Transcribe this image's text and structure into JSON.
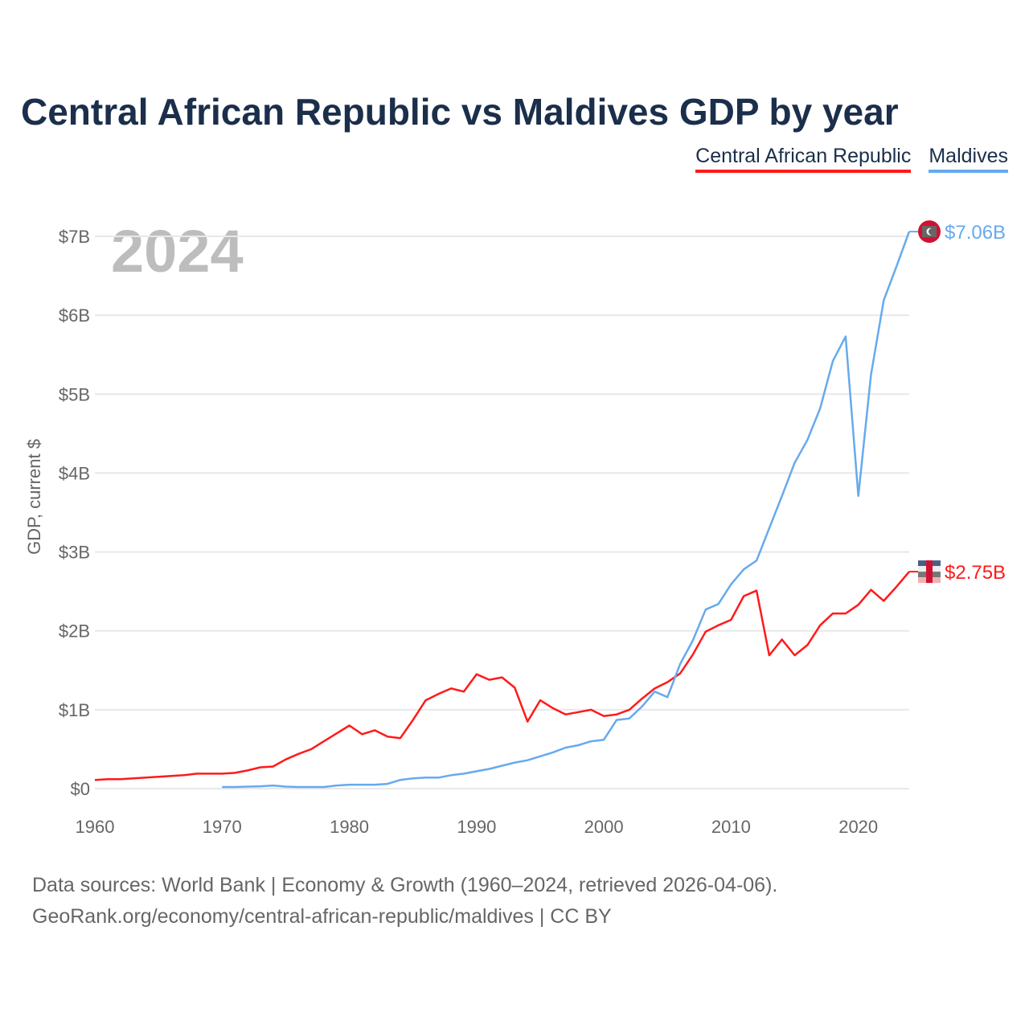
{
  "chart_data": {
    "type": "line",
    "title": "Central African Republic vs Maldives GDP by year",
    "ylabel": "GDP, current $",
    "xlabel": "",
    "ylim": [
      0,
      7
    ],
    "xlim": [
      1960,
      2024
    ],
    "y_unit": "billions USD",
    "yticks": [
      0,
      1,
      2,
      3,
      4,
      5,
      6,
      7
    ],
    "ytick_labels": [
      "$0",
      "$1B",
      "$2B",
      "$3B",
      "$4B",
      "$5B",
      "$6B",
      "$7B"
    ],
    "xticks": [
      1960,
      1970,
      1980,
      1990,
      2000,
      2010,
      2020
    ],
    "xtick_labels": [
      "1960",
      "1970",
      "1980",
      "1990",
      "2000",
      "2010",
      "2020"
    ],
    "grid": true,
    "legend_placement": "top-right",
    "year_watermark": "2024",
    "series": [
      {
        "name": "Central African Republic",
        "color": "#ff1a1a",
        "end_label": "$2.75B",
        "start_year": 1960,
        "values": [
          0.11,
          0.12,
          0.12,
          0.13,
          0.14,
          0.15,
          0.16,
          0.17,
          0.19,
          0.19,
          0.19,
          0.2,
          0.23,
          0.27,
          0.28,
          0.37,
          0.44,
          0.5,
          0.6,
          0.7,
          0.8,
          0.69,
          0.74,
          0.66,
          0.64,
          0.87,
          1.12,
          1.2,
          1.27,
          1.23,
          1.45,
          1.38,
          1.41,
          1.28,
          0.85,
          1.12,
          1.02,
          0.94,
          0.97,
          1.0,
          0.92,
          0.94,
          1.0,
          1.14,
          1.27,
          1.35,
          1.46,
          1.7,
          1.99,
          2.07,
          2.14,
          2.44,
          2.51,
          1.69,
          1.89,
          1.69,
          1.82,
          2.07,
          2.22,
          2.22,
          2.33,
          2.52,
          2.38,
          2.56,
          2.75
        ]
      },
      {
        "name": "Maldives",
        "color": "#66aaee",
        "end_label": "$7.06B",
        "start_year": 1970,
        "values": [
          0.02,
          0.02,
          0.025,
          0.03,
          0.04,
          0.025,
          0.02,
          0.02,
          0.02,
          0.04,
          0.05,
          0.05,
          0.05,
          0.06,
          0.11,
          0.13,
          0.14,
          0.14,
          0.17,
          0.19,
          0.22,
          0.25,
          0.29,
          0.33,
          0.36,
          0.41,
          0.46,
          0.52,
          0.55,
          0.6,
          0.62,
          0.87,
          0.89,
          1.04,
          1.23,
          1.16,
          1.58,
          1.88,
          2.27,
          2.34,
          2.59,
          2.78,
          2.89,
          3.3,
          3.71,
          4.13,
          4.42,
          4.82,
          5.42,
          5.73,
          3.71,
          5.25,
          6.19,
          6.62,
          7.06
        ]
      }
    ]
  },
  "footer": {
    "line1": "Data sources: World Bank | Economy & Growth (1960–2024, retrieved 2026-04-06).",
    "line2": "GeoRank.org/economy/central-african-republic/maldives | CC BY"
  }
}
